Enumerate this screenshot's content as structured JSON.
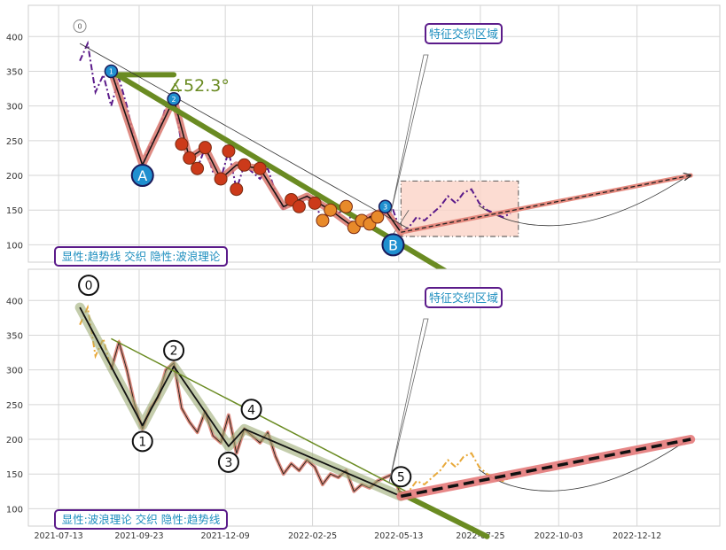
{
  "chart_data": [
    {
      "type": "line",
      "panel": "top",
      "ylim": [
        75,
        445
      ],
      "y_ticks": [
        100,
        150,
        200,
        250,
        300,
        350,
        400
      ],
      "legend_box": "显性:趋势线 交织 隐性:波浪理论",
      "callout": "特征交织区域",
      "angle_label": "∡52.3°",
      "wave_labels": {
        "a": "A",
        "b": "B",
        "l1": "1",
        "l2": "2",
        "l3": "3",
        "l0": "0"
      },
      "price_series": {
        "x": [
          "2021-08-01",
          "2021-08-08",
          "2021-08-15",
          "2021-08-22",
          "2021-08-29",
          "2021-09-05",
          "2021-09-12",
          "2021-09-19",
          "2021-09-26",
          "2021-10-03",
          "2021-10-10",
          "2021-10-17",
          "2021-10-24",
          "2021-10-31",
          "2021-11-07",
          "2021-11-14",
          "2021-11-21",
          "2021-11-28",
          "2021-12-05",
          "2021-12-12",
          "2021-12-19",
          "2021-12-26",
          "2022-01-02",
          "2022-01-09",
          "2022-01-16",
          "2022-01-23",
          "2022-01-30",
          "2022-02-06",
          "2022-02-13",
          "2022-02-20",
          "2022-02-27",
          "2022-03-06",
          "2022-03-13",
          "2022-03-20",
          "2022-03-27",
          "2022-04-03",
          "2022-04-10",
          "2022-04-17",
          "2022-04-24",
          "2022-05-01",
          "2022-05-08",
          "2022-05-15",
          "2022-05-22",
          "2022-05-29",
          "2022-06-05",
          "2022-06-12",
          "2022-06-19",
          "2022-06-26",
          "2022-07-03",
          "2022-07-10",
          "2022-07-17",
          "2022-07-24",
          "2022-07-31",
          "2022-08-07",
          "2022-08-14",
          "2022-08-21"
        ],
        "y": [
          365,
          390,
          320,
          345,
          300,
          340,
          300,
          250,
          215,
          245,
          260,
          300,
          310,
          245,
          225,
          210,
          240,
          205,
          195,
          235,
          180,
          215,
          205,
          195,
          210,
          175,
          150,
          165,
          155,
          170,
          160,
          135,
          150,
          145,
          155,
          125,
          135,
          130,
          140,
          145,
          150,
          118,
          125,
          140,
          135,
          145,
          155,
          170,
          160,
          175,
          180,
          160,
          150,
          145,
          140,
          145
        ]
      },
      "wave_path": {
        "x": [
          "2021-08-29",
          "2021-09-26",
          "2021-10-24",
          "2021-11-07",
          "2021-11-21",
          "2021-12-05",
          "2021-12-19",
          "2022-01-09",
          "2022-01-30",
          "2022-02-20",
          "2022-03-13",
          "2022-04-03",
          "2022-04-17",
          "2022-05-01",
          "2022-05-15"
        ],
        "y": [
          350,
          215,
          310,
          225,
          240,
          195,
          215,
          210,
          155,
          170,
          150,
          125,
          140,
          150,
          118
        ]
      },
      "trendlines": [
        {
          "from": [
            "2021-08-29",
            350
          ],
          "to": [
            "2022-06-26",
            60
          ]
        },
        {
          "from": [
            "2021-08-29",
            345
          ],
          "to": [
            "2021-10-24",
            345
          ]
        },
        {
          "from": [
            "2021-08-01",
            390
          ],
          "to": [
            "2022-05-22",
            123
          ]
        },
        {
          "from": [
            "2022-05-15",
            118
          ],
          "to": [
            "2023-01-29",
            200
          ]
        }
      ],
      "zone": {
        "x0": "2022-05-15",
        "x1": "2022-08-28",
        "y0": 112,
        "y1": 192
      }
    },
    {
      "type": "line",
      "panel": "bottom",
      "ylim": [
        75,
        445
      ],
      "y_ticks": [
        100,
        150,
        200,
        250,
        300,
        350,
        400
      ],
      "x_ticks": [
        "2021-07-13",
        "2021-09-23",
        "2021-12-09",
        "2022-02-25",
        "2022-05-13",
        "2022-07-25",
        "2022-10-03",
        "2022-12-12"
      ],
      "legend_box": "显性:波浪理论 交织 隐性:趋势线",
      "callout": "特征交织区域",
      "wave_labels": [
        "0",
        "1",
        "2",
        "3",
        "4",
        "5"
      ],
      "wave_points": {
        "x": [
          "2021-08-01",
          "2021-09-26",
          "2021-10-24",
          "2021-12-12",
          "2021-12-26",
          "2022-05-15"
        ],
        "y": [
          390,
          220,
          305,
          190,
          215,
          118
        ]
      },
      "projection": {
        "from": [
          "2022-05-15",
          118
        ],
        "to": [
          "2023-01-29",
          200
        ]
      }
    }
  ]
}
